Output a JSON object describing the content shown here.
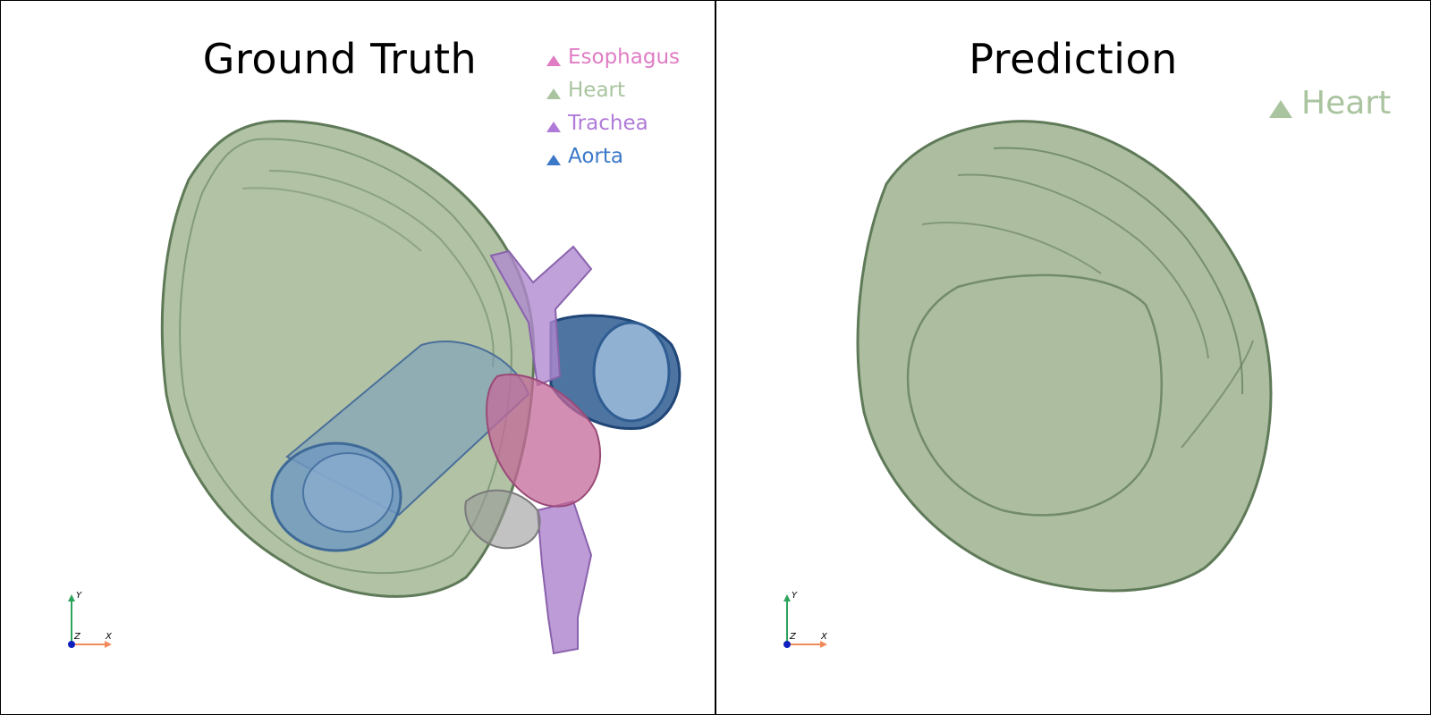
{
  "left_panel": {
    "title": "Ground Truth",
    "legend": [
      {
        "label": "Esophagus",
        "color": "#e07cc4"
      },
      {
        "label": "Heart",
        "color": "#a9c49f"
      },
      {
        "label": "Trachea",
        "color": "#b07ad8"
      },
      {
        "label": "Aorta",
        "color": "#3b78c8"
      }
    ],
    "axes": {
      "y": "Y",
      "z": "Z",
      "x": "X"
    }
  },
  "right_panel": {
    "title": "Prediction",
    "legend": [
      {
        "label": "Heart",
        "color": "#a9c49f"
      }
    ],
    "axes": {
      "y": "Y",
      "z": "Z",
      "x": "X"
    }
  },
  "colors": {
    "heart_fill": "#a6b998",
    "heart_stroke": "#5f7a58",
    "aorta_fill": "#6f98c2",
    "aorta_dark": "#2f5d92",
    "trachea_fill": "#b08ad0",
    "esophagus_fill": "#c46a9a",
    "axis_y": "#2ea35c",
    "axis_x": "#f08a5a",
    "axis_origin": "#1020c0"
  }
}
